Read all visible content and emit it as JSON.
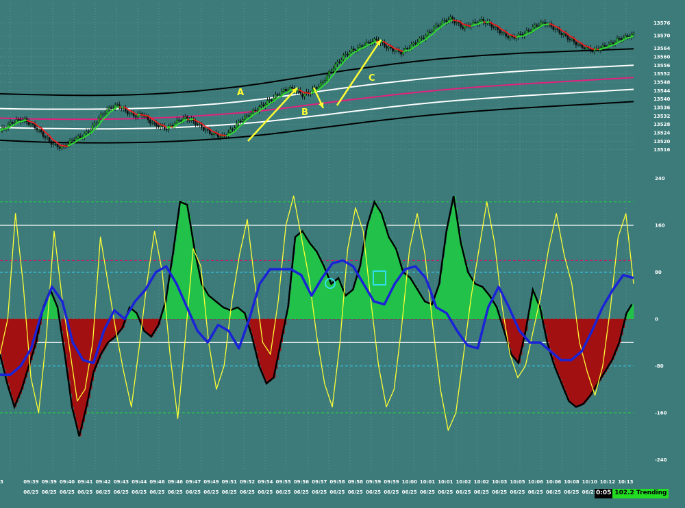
{
  "chart_data": [
    {
      "type": "candlestick",
      "panel": "price",
      "y_ticks": [
        13576,
        13570,
        13564,
        13560,
        13556,
        13552,
        13548,
        13544,
        13540,
        13536,
        13532,
        13528,
        13524,
        13520,
        13516
      ],
      "ylim": [
        13513,
        13583
      ],
      "bands": [
        {
          "role": "outer-upper",
          "color": "#000000",
          "values": [
            13542.5,
            13542.2,
            13542.0,
            13541.8,
            13541.7,
            13541.8,
            13542.0,
            13542.4,
            13543.0,
            13543.8,
            13544.8,
            13546.0,
            13547.4,
            13549.0,
            13550.6,
            13552.2,
            13553.8,
            13555.2,
            13556.6,
            13557.8,
            13558.9,
            13559.8,
            13560.6,
            13561.2,
            13561.8,
            13562.2,
            13562.6,
            13563.0,
            13563.4,
            13563.8
          ]
        },
        {
          "role": "inner-upper",
          "color": "#ffffff",
          "values": [
            13535.5,
            13535.3,
            13535.2,
            13535.2,
            13535.2,
            13535.3,
            13535.5,
            13535.8,
            13536.3,
            13537.0,
            13537.8,
            13538.8,
            13540.0,
            13541.4,
            13542.8,
            13544.2,
            13545.6,
            13546.9,
            13548.1,
            13549.2,
            13550.2,
            13551.1,
            13551.9,
            13552.6,
            13553.3,
            13553.9,
            13554.5,
            13555.0,
            13555.5,
            13556.0
          ]
        },
        {
          "role": "middle",
          "color": "#e2207e",
          "values": [
            13531.0,
            13530.7,
            13530.5,
            13530.4,
            13530.4,
            13530.5,
            13530.7,
            13531.0,
            13531.4,
            13532.0,
            13532.7,
            13533.5,
            13534.5,
            13535.7,
            13537.0,
            13538.3,
            13539.6,
            13540.8,
            13542.0,
            13543.1,
            13544.1,
            13545.0,
            13545.8,
            13546.5,
            13547.2,
            13547.8,
            13548.4,
            13549.0,
            13549.6,
            13550.2
          ]
        },
        {
          "role": "inner-lower",
          "color": "#ffffff",
          "values": [
            13526.5,
            13526.3,
            13526.1,
            13526.0,
            13525.9,
            13525.9,
            13526.0,
            13526.2,
            13526.5,
            13527.0,
            13527.6,
            13528.3,
            13529.2,
            13530.3,
            13531.5,
            13532.7,
            13534.0,
            13535.2,
            13536.4,
            13537.5,
            13538.5,
            13539.4,
            13540.2,
            13540.9,
            13541.6,
            13542.2,
            13542.8,
            13543.4,
            13544.0,
            13544.6
          ]
        },
        {
          "role": "outer-lower",
          "color": "#000000",
          "values": [
            13520.5,
            13520.0,
            13519.6,
            13519.4,
            13519.3,
            13519.3,
            13519.4,
            13519.6,
            13520.0,
            13520.5,
            13521.2,
            13522.0,
            13523.0,
            13524.2,
            13525.5,
            13526.8,
            13528.1,
            13529.4,
            13530.6,
            13531.7,
            13532.7,
            13533.6,
            13534.4,
            13535.1,
            13535.8,
            13536.4,
            13537.0,
            13537.6,
            13538.2,
            13538.8
          ]
        }
      ],
      "price_path": [
        13525,
        13527,
        13529,
        13530,
        13530,
        13528,
        13526,
        13523,
        13520,
        13518,
        13517,
        13519,
        13521,
        13522,
        13524,
        13527,
        13531,
        13534,
        13536,
        13537,
        13535,
        13533,
        13532,
        13533,
        13530,
        13528,
        13527,
        13526,
        13528,
        13530,
        13531,
        13530,
        13528,
        13526,
        13524,
        13523,
        13522,
        13524,
        13527,
        13530,
        13532,
        13534,
        13536,
        13538,
        13540,
        13542,
        13544,
        13545,
        13544,
        13542,
        13543,
        13545,
        13547,
        13551,
        13555,
        13558,
        13561,
        13563,
        13564,
        13566,
        13567,
        13568,
        13566,
        13564,
        13563,
        13562,
        13564,
        13566,
        13568,
        13570,
        13573,
        13575,
        13577,
        13578,
        13576,
        13574,
        13575,
        13576,
        13577,
        13576,
        13574,
        13572,
        13570,
        13569,
        13570,
        13571,
        13573,
        13575,
        13576,
        13575,
        13573,
        13571,
        13569,
        13567,
        13565,
        13564,
        13563,
        13564,
        13565,
        13566,
        13568,
        13569,
        13570,
        13571
      ]
    },
    {
      "type": "histogram-oscillator",
      "panel": "oscillator",
      "y_ticks": [
        240,
        160,
        80,
        0,
        -80,
        -160,
        -240
      ],
      "ylim": [
        -250,
        250
      ],
      "reference_levels": [
        {
          "value": 200,
          "color": "#22cc44"
        },
        {
          "value": 160,
          "color": "#ffffff"
        },
        {
          "value": 100,
          "color": "#bb2266"
        },
        {
          "value": 80,
          "color": "#33ccee"
        },
        {
          "value": -40,
          "color": "#ffffff"
        },
        {
          "value": -80,
          "color": "#33ccee"
        },
        {
          "value": -160,
          "color": "#22cc44"
        }
      ],
      "histogram": [
        -60,
        -110,
        -150,
        -120,
        -80,
        -40,
        20,
        50,
        20,
        -60,
        -150,
        -200,
        -150,
        -90,
        -60,
        -40,
        -30,
        -15,
        20,
        10,
        -20,
        -30,
        -10,
        30,
        110,
        200,
        195,
        120,
        60,
        40,
        30,
        20,
        15,
        20,
        10,
        -30,
        -80,
        -110,
        -100,
        -40,
        20,
        140,
        150,
        130,
        115,
        90,
        60,
        70,
        40,
        50,
        90,
        160,
        200,
        180,
        140,
        120,
        80,
        70,
        50,
        30,
        25,
        60,
        150,
        210,
        130,
        80,
        60,
        55,
        40,
        20,
        -20,
        -60,
        -75,
        -20,
        50,
        20,
        -40,
        -80,
        -110,
        -140,
        -150,
        -145,
        -130,
        -110,
        -90,
        -70,
        -40,
        10,
        30
      ],
      "histogram_colors": "positive green, negative dark red, transitional gray",
      "fast_line": [
        -60,
        0,
        180,
        60,
        -100,
        -160,
        -30,
        150,
        40,
        -50,
        -140,
        -120,
        -40,
        140,
        60,
        -20,
        -90,
        -150,
        -50,
        60,
        150,
        80,
        -60,
        -170,
        -30,
        120,
        90,
        -40,
        -120,
        -80,
        30,
        110,
        170,
        60,
        -40,
        -60,
        30,
        160,
        210,
        140,
        70,
        -30,
        -110,
        -150,
        -40,
        120,
        190,
        150,
        30,
        -80,
        -150,
        -120,
        -10,
        120,
        180,
        110,
        -10,
        -120,
        -190,
        -160,
        -60,
        40,
        120,
        200,
        130,
        20,
        -60,
        -100,
        -80,
        -20,
        40,
        120,
        180,
        110,
        60,
        -40,
        -90,
        -130,
        -80,
        20,
        140,
        180,
        60
      ],
      "slow_line": [
        -95,
        -95,
        -80,
        -50,
        10,
        55,
        30,
        -40,
        -70,
        -75,
        -20,
        15,
        0,
        30,
        50,
        80,
        90,
        60,
        20,
        -20,
        -40,
        -10,
        -20,
        -50,
        0,
        60,
        85,
        85,
        85,
        75,
        40,
        70,
        95,
        100,
        90,
        60,
        30,
        25,
        60,
        85,
        90,
        70,
        20,
        10,
        -20,
        -45,
        -50,
        20,
        55,
        20,
        -20,
        -40,
        -40,
        -55,
        -70,
        -70,
        -55,
        -20,
        20,
        50,
        75,
        70
      ]
    }
  ],
  "x_axis": {
    "times": [
      "3",
      "09:39",
      "09:39",
      "09:40",
      "09:41",
      "09:42",
      "09:43",
      "09:44",
      "09:46",
      "09:46",
      "09:47",
      "09:49",
      "09:51",
      "09:52",
      "09:54",
      "09:55",
      "09:56",
      "09:57",
      "09:58",
      "09:58",
      "09:59",
      "09:59",
      "10:00",
      "10:01",
      "10:01",
      "10:02",
      "10:02",
      "10:03",
      "10:05",
      "10:06",
      "10:06",
      "10:08",
      "10:10",
      "10:12",
      "10:13"
    ],
    "dates": [
      "",
      "06/25",
      "06/25",
      "06/25",
      "06/25",
      "06/25",
      "06/25",
      "06/25",
      "06/25",
      "06/25",
      "06/25",
      "06/25",
      "06/25",
      "06/25",
      "06/25",
      "06/25",
      "06/25",
      "06/25",
      "06/25",
      "06/25",
      "06/25",
      "06/25",
      "06/25",
      "06/25",
      "06/25",
      "06/25",
      "06/25",
      "06/25",
      "06/25",
      "06/25",
      "06/25",
      "06/25",
      "06/25",
      "06/25",
      "06/25"
    ]
  },
  "annotations": {
    "a": "A",
    "b": "B",
    "c": "C",
    "arrow_color": "#ffff33"
  },
  "status": {
    "time": "0:05",
    "trend": "102.2 Trending"
  },
  "colors": {
    "background": "#3d7b7b",
    "up": "#22c24a",
    "down": "#a31012",
    "fast": "#ffff33",
    "slow": "#1a23d6",
    "outline": "#000000"
  }
}
